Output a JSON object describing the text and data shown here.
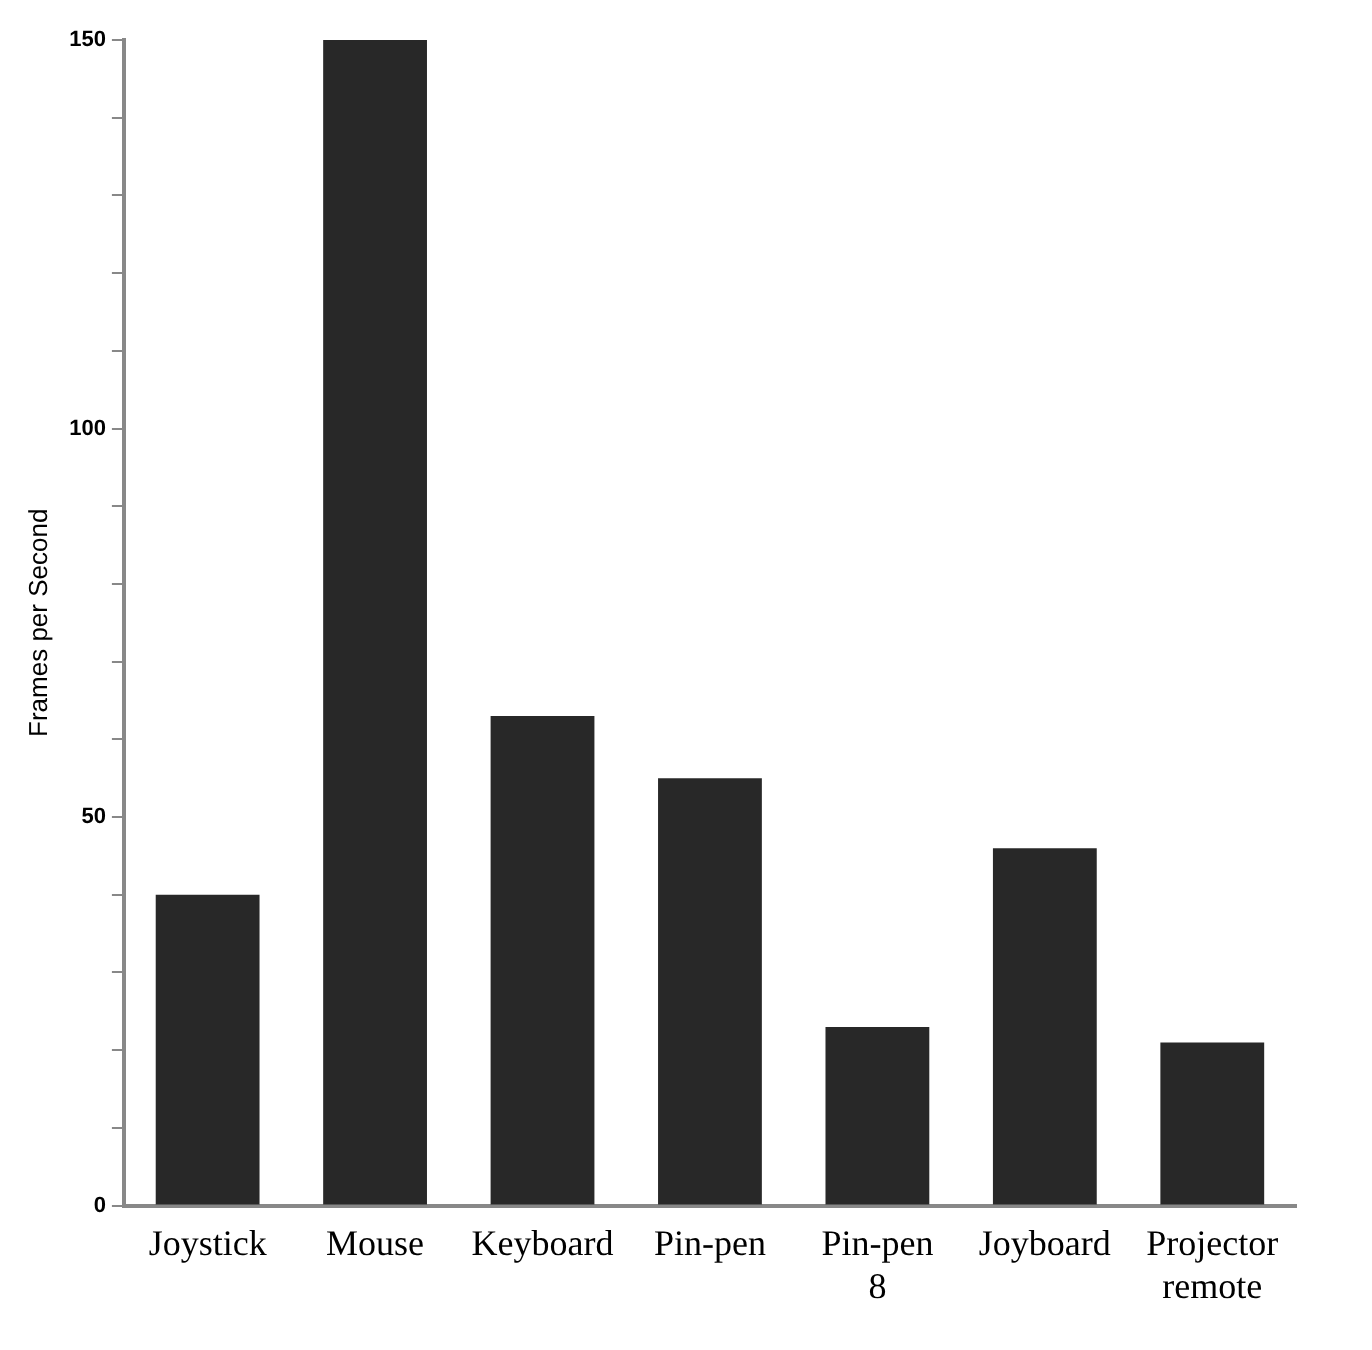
{
  "chart_data": {
    "type": "bar",
    "ylabel": "Frames per Second",
    "categories": [
      "Joystick",
      "Mouse",
      "Keyboard",
      "Pin-pen",
      "Pin-pen 8",
      "Joyboard",
      "Projector remote"
    ],
    "values": [
      40,
      150,
      63,
      55,
      23,
      46,
      21
    ],
    "color": "#282828",
    "ylim": [
      0,
      150
    ],
    "yticks": [
      0,
      {
        "value": 10,
        "label": null
      },
      {
        "value": 20,
        "label": null
      },
      {
        "value": 30,
        "label": null
      },
      {
        "value": 40,
        "label": null
      },
      50,
      {
        "value": 60,
        "label": null
      },
      {
        "value": 70,
        "label": null
      },
      {
        "value": 80,
        "label": null
      },
      {
        "value": 90,
        "label": null
      },
      100,
      {
        "value": 110,
        "label": null
      },
      {
        "value": 120,
        "label": null
      },
      {
        "value": 130,
        "label": null
      },
      {
        "value": 140,
        "label": null
      },
      150
    ],
    "grid": false,
    "legend": false
  }
}
